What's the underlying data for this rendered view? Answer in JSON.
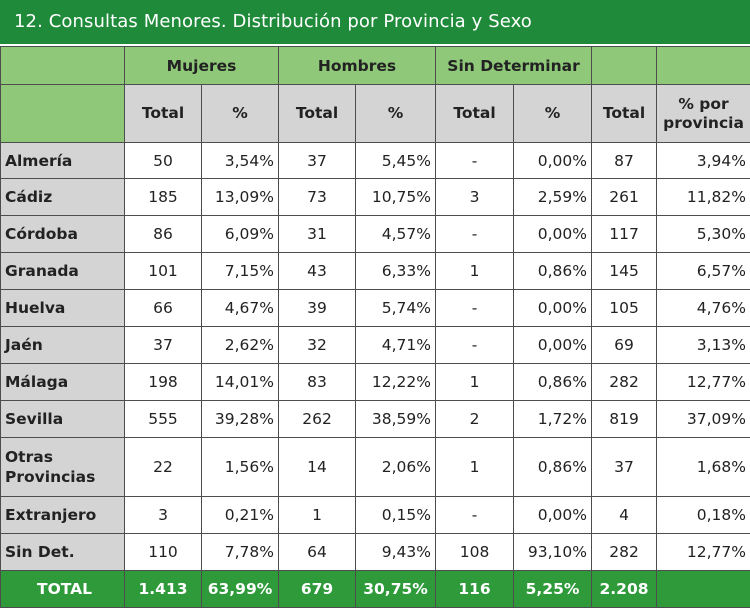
{
  "title": "12. Consultas Menores. Distribución por Provincia y Sexo",
  "headers": {
    "groups": [
      "Mujeres",
      "Hombres",
      "Sin Determinar"
    ],
    "columns": [
      "Total",
      "%",
      "Total",
      "%",
      "Total",
      "%",
      "Total",
      "% por provincia"
    ]
  },
  "rows": [
    {
      "label": "Almería",
      "cells": [
        "50",
        "3,54%",
        "37",
        "5,45%",
        "-",
        "0,00%",
        "87",
        "3,94%"
      ]
    },
    {
      "label": "Cádiz",
      "cells": [
        "185",
        "13,09%",
        "73",
        "10,75%",
        "3",
        "2,59%",
        "261",
        "11,82%"
      ]
    },
    {
      "label": "Córdoba",
      "cells": [
        "86",
        "6,09%",
        "31",
        "4,57%",
        "-",
        "0,00%",
        "117",
        "5,30%"
      ]
    },
    {
      "label": "Granada",
      "cells": [
        "101",
        "7,15%",
        "43",
        "6,33%",
        "1",
        "0,86%",
        "145",
        "6,57%"
      ]
    },
    {
      "label": "Huelva",
      "cells": [
        "66",
        "4,67%",
        "39",
        "5,74%",
        "-",
        "0,00%",
        "105",
        "4,76%"
      ]
    },
    {
      "label": "Jaén",
      "cells": [
        "37",
        "2,62%",
        "32",
        "4,71%",
        "-",
        "0,00%",
        "69",
        "3,13%"
      ]
    },
    {
      "label": "Málaga",
      "cells": [
        "198",
        "14,01%",
        "83",
        "12,22%",
        "1",
        "0,86%",
        "282",
        "12,77%"
      ]
    },
    {
      "label": "Sevilla",
      "cells": [
        "555",
        "39,28%",
        "262",
        "38,59%",
        "2",
        "1,72%",
        "819",
        "37,09%"
      ]
    },
    {
      "label": "Otras Provincias",
      "cells": [
        "22",
        "1,56%",
        "14",
        "2,06%",
        "1",
        "0,86%",
        "37",
        "1,68%"
      ]
    },
    {
      "label": "Extranjero",
      "cells": [
        "3",
        "0,21%",
        "1",
        "0,15%",
        "-",
        "0,00%",
        "4",
        "0,18%"
      ]
    },
    {
      "label": "Sin Det.",
      "cells": [
        "110",
        "7,78%",
        "64",
        "9,43%",
        "108",
        "93,10%",
        "282",
        "12,77%"
      ]
    }
  ],
  "total": {
    "label": "TOTAL",
    "cells": [
      "1.413",
      "63,99%",
      "679",
      "30,75%",
      "116",
      "5,25%",
      "2.208",
      ""
    ]
  }
}
